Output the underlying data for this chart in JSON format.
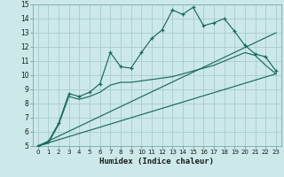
{
  "xlabel": "Humidex (Indice chaleur)",
  "bg_color": "#cce8e8",
  "grid_color": "#aacccc",
  "line_color": "#1a6b5a",
  "xlim": [
    -0.5,
    23.5
  ],
  "ylim": [
    5,
    15
  ],
  "xticks": [
    0,
    1,
    2,
    3,
    4,
    5,
    6,
    7,
    8,
    9,
    10,
    11,
    12,
    13,
    14,
    15,
    16,
    17,
    18,
    19,
    20,
    21,
    22,
    23
  ],
  "yticks": [
    5,
    6,
    7,
    8,
    9,
    10,
    11,
    12,
    13,
    14,
    15
  ],
  "series1_x": [
    0,
    1,
    2,
    3,
    4,
    5,
    6,
    7,
    8,
    9,
    10,
    11,
    12,
    13,
    14,
    15,
    16,
    17,
    18,
    19,
    20,
    21,
    22,
    23
  ],
  "series1_y": [
    5.0,
    5.3,
    6.6,
    8.7,
    8.5,
    8.8,
    9.4,
    11.6,
    10.6,
    10.5,
    11.6,
    12.6,
    13.2,
    14.6,
    14.3,
    14.8,
    13.5,
    13.7,
    14.0,
    13.1,
    12.1,
    11.5,
    11.3,
    10.3
  ],
  "series2_x": [
    0,
    1,
    2,
    3,
    4,
    5,
    6,
    7,
    8,
    9,
    10,
    11,
    12,
    13,
    14,
    15,
    16,
    17,
    18,
    19,
    20,
    21,
    22,
    23
  ],
  "series2_y": [
    5.0,
    5.2,
    6.5,
    8.5,
    8.3,
    8.5,
    8.8,
    9.3,
    9.5,
    9.5,
    9.6,
    9.7,
    9.8,
    9.9,
    10.1,
    10.3,
    10.5,
    10.7,
    11.0,
    11.3,
    11.6,
    11.4,
    10.7,
    10.1
  ],
  "series3_x": [
    0,
    23
  ],
  "series3_y": [
    5.0,
    10.1
  ],
  "series4_x": [
    0,
    23
  ],
  "series4_y": [
    5.0,
    13.0
  ]
}
